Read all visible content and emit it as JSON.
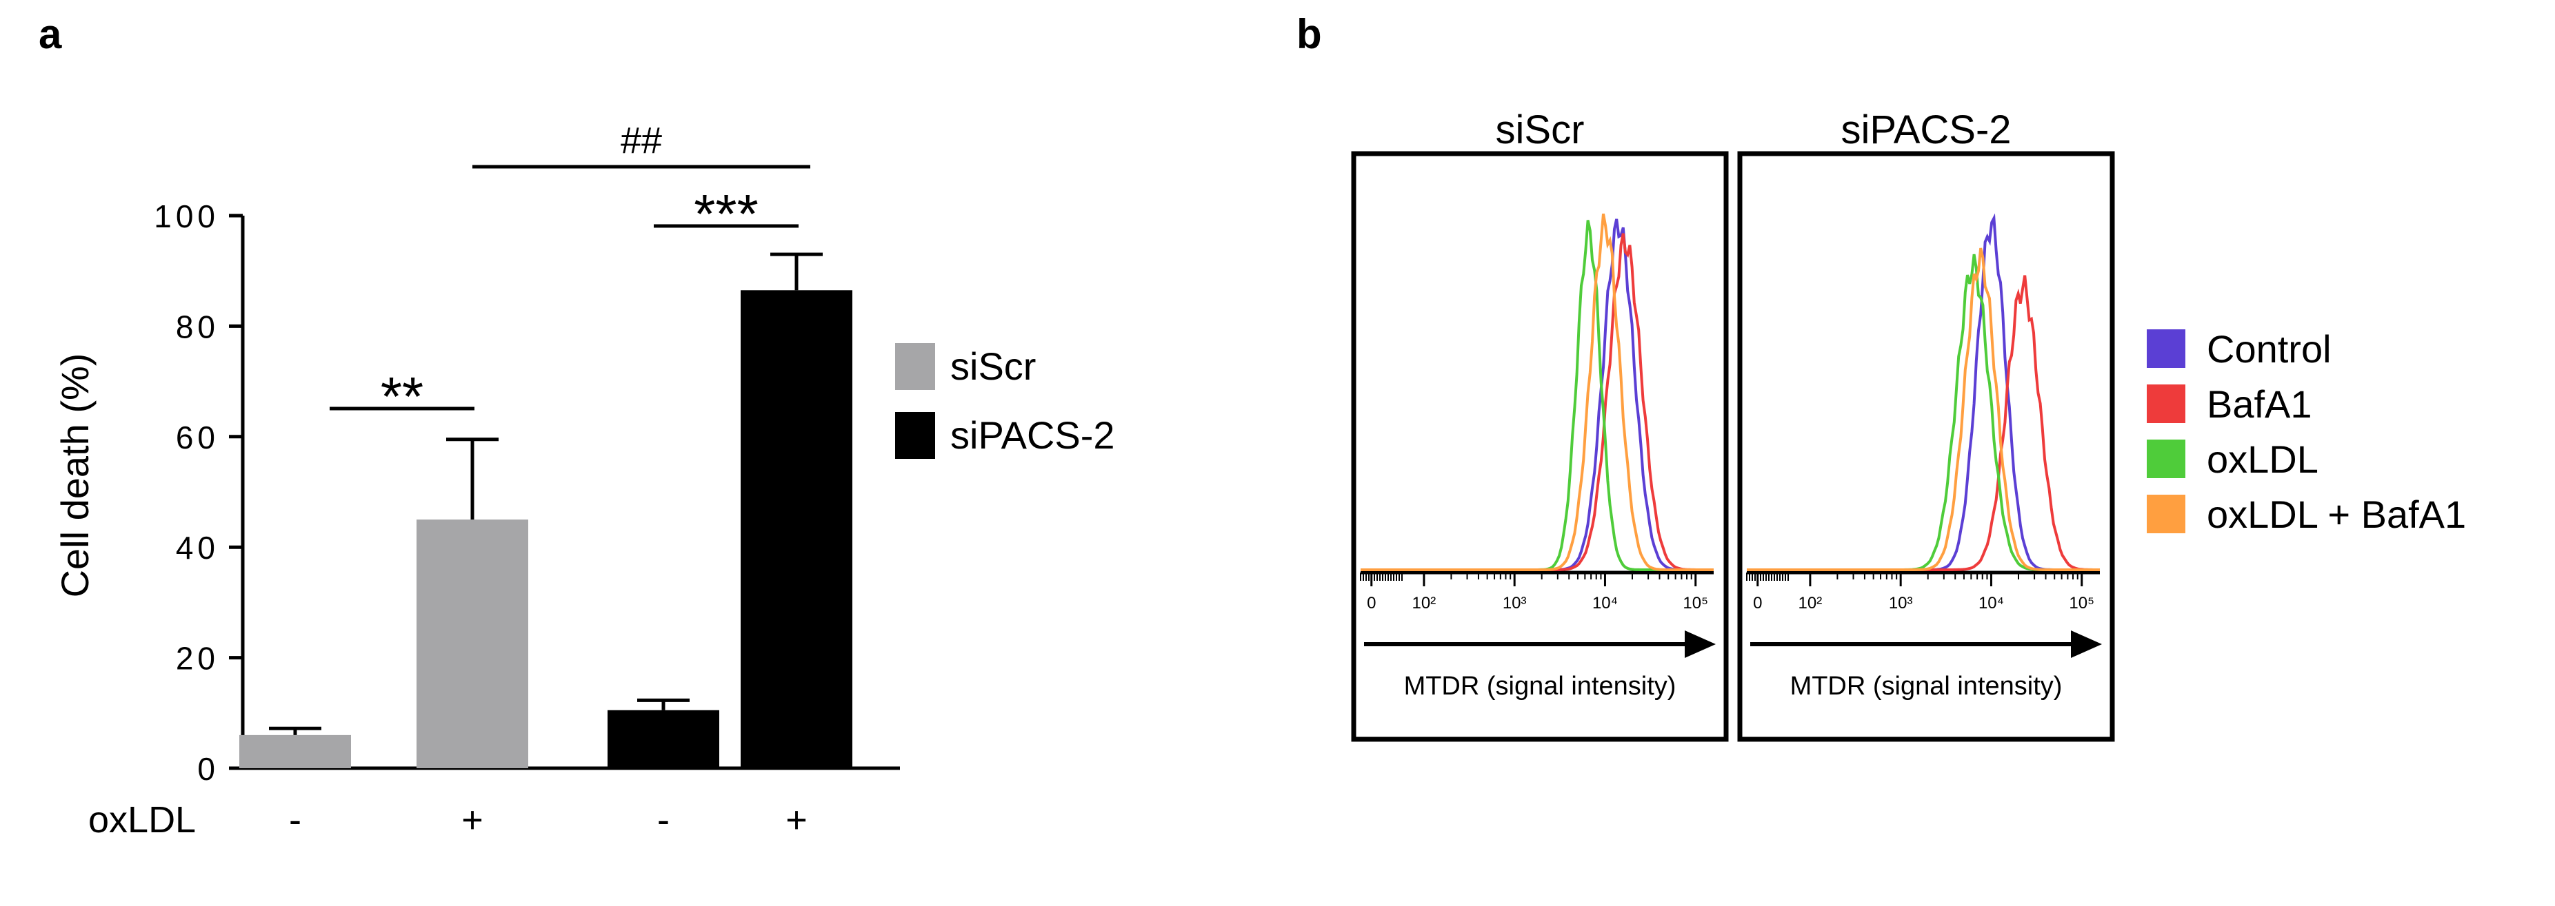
{
  "figure": {
    "panel_a_letter": "a",
    "panel_b_letter": "b"
  },
  "chart_data": [
    {
      "type": "bar",
      "panel": "a",
      "ylabel": "Cell death (%)",
      "ylim": [
        0,
        100
      ],
      "yticks": [
        0,
        20,
        40,
        60,
        80,
        100
      ],
      "row_label": "oxLDL",
      "categories": [
        "-",
        "+",
        "-",
        "+"
      ],
      "groups": [
        "siScr",
        "siScr",
        "siPACS-2",
        "siPACS-2"
      ],
      "values": [
        6,
        45,
        10.5,
        86.5
      ],
      "errors": [
        1.2,
        14.5,
        1.8,
        6.5
      ],
      "bar_colors": [
        "#a6a6a8",
        "#a6a6a8",
        "#000000",
        "#000000"
      ],
      "legend": [
        {
          "label": "siScr",
          "color": "#a6a6a8"
        },
        {
          "label": "siPACS-2",
          "color": "#000000"
        }
      ],
      "annotations": [
        {
          "text": "**",
          "from": 0,
          "to": 1
        },
        {
          "text": "***",
          "from": 2,
          "to": 3
        },
        {
          "text": "##",
          "from": 1,
          "to": 3
        }
      ]
    },
    {
      "type": "line",
      "panel": "b",
      "xscale": "log",
      "xlabel": "MTDR (signal intensity)",
      "xlim": [
        0,
        100000
      ],
      "xticks": [
        "0",
        "10²",
        "10³",
        "10⁴",
        "10⁵"
      ],
      "panels": [
        {
          "title": "siScr",
          "series": [
            {
              "name": "Control",
              "color": "#5b3fd4",
              "peak_log10": 4.15,
              "width": 0.17,
              "height": 1.0
            },
            {
              "name": "BafA1",
              "color": "#ee3b3b",
              "peak_log10": 4.22,
              "width": 0.18,
              "height": 0.95
            },
            {
              "name": "oxLDL",
              "color": "#4fcc3a",
              "peak_log10": 3.82,
              "width": 0.13,
              "height": 0.98
            },
            {
              "name": "oxLDL + BafA1",
              "color": "#ff9f40",
              "peak_log10": 4.0,
              "width": 0.16,
              "height": 1.0
            }
          ]
        },
        {
          "title": "siPACS-2",
          "series": [
            {
              "name": "Control",
              "color": "#5b3fd4",
              "peak_log10": 4.0,
              "width": 0.16,
              "height": 1.0
            },
            {
              "name": "BafA1",
              "color": "#ee3b3b",
              "peak_log10": 4.35,
              "width": 0.18,
              "height": 0.82
            },
            {
              "name": "oxLDL",
              "color": "#4fcc3a",
              "peak_log10": 3.8,
              "width": 0.18,
              "height": 0.88
            },
            {
              "name": "oxLDL + BafA1",
              "color": "#ff9f40",
              "peak_log10": 3.88,
              "width": 0.17,
              "height": 0.9
            }
          ]
        }
      ],
      "legend": [
        {
          "label": "Control",
          "color": "#5b3fd4"
        },
        {
          "label": "BafA1",
          "color": "#ee3b3b"
        },
        {
          "label": "oxLDL",
          "color": "#4fcc3a"
        },
        {
          "label": "oxLDL + BafA1",
          "color": "#ff9f40"
        }
      ]
    }
  ]
}
